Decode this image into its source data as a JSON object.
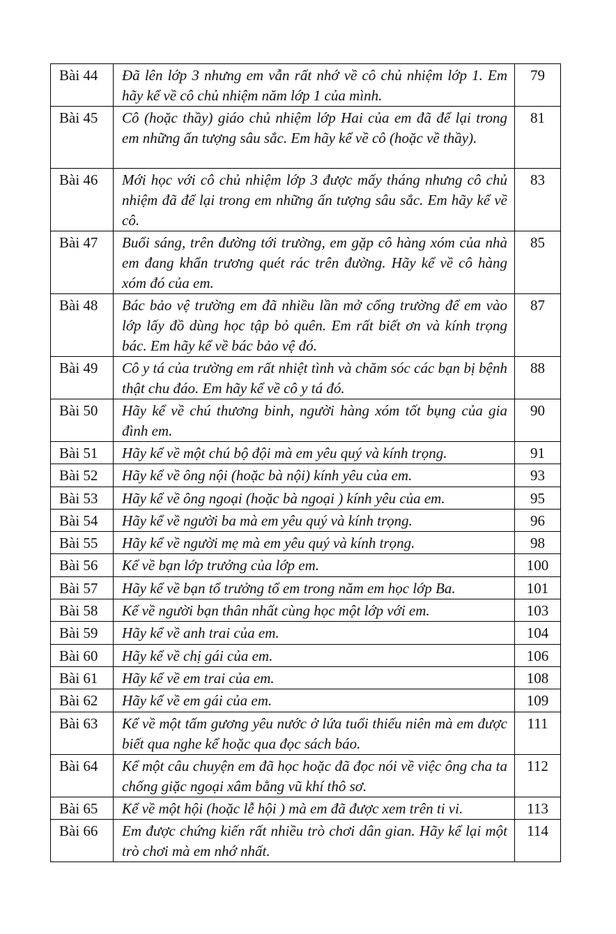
{
  "rows": [
    {
      "num": "Bài 44",
      "topic": "Đã lên lớp 3 nhưng em vẫn rất nhớ về cô chủ nhiệm lớp 1. Em hãy kể về cô chủ nhiệm năm lớp 1 của mình.",
      "page": "79"
    },
    {
      "num": "Bài 45",
      "topic": "Cô (hoặc thầy) giáo chủ nhiệm lớp Hai của em đã để lại trong em những ấn tượng sâu sắc. Em hãy kể về cô (hoặc về thầy).",
      "page": "81"
    },
    {
      "num": "Bài 46",
      "topic": "Mới học với cô chủ nhiệm lớp 3 được mấy tháng nhưng cô chủ nhiệm đã để lại trong em những ấn tượng sâu sắc. Em hãy kể về cô.",
      "page": "83"
    },
    {
      "num": "Bài 47",
      "topic": "Buổi sáng, trên đường tới trường, em gặp cô hàng xóm của nhà em đang khẩn trương quét rác trên đường. Hãy kể về cô hàng xóm đó của em.",
      "page": "85"
    },
    {
      "num": "Bài 48",
      "topic": "Bác bảo vệ trường em đã nhiều lần mở cổng trường để em vào lớp lấy đồ dùng học tập bỏ quên. Em rất biết ơn và kính trọng bác. Em hãy kể về bác bảo vệ đó.",
      "page": "87"
    },
    {
      "num": "Bài 49",
      "topic": "Cô y tá của trường em rất nhiệt tình và chăm sóc các bạn bị bệnh thật chu đáo. Em hãy kể về cô y tá đó.",
      "page": "88"
    },
    {
      "num": "Bài 50",
      "topic": "Hãy kể về chú thương binh, người hàng xóm tốt bụng của gia đình em.",
      "page": "90"
    },
    {
      "num": "Bài 51",
      "topic": "Hãy kể về một chú bộ đội mà em yêu quý và kính trọng.",
      "page": "91"
    },
    {
      "num": "Bài 52",
      "topic": "Hãy kể về ông nội (hoặc bà nội) kính yêu của em.",
      "page": "93"
    },
    {
      "num": "Bài 53",
      "topic": "Hãy kể về ông ngoại (hoặc bà ngoại ) kính yêu của em.",
      "page": "95"
    },
    {
      "num": "Bài 54",
      "topic": "Hãy kể về người ba mà em yêu quý và kính trọng.",
      "page": "96"
    },
    {
      "num": "Bài 55",
      "topic": "Hãy kể về người mẹ mà em yêu quý và kính trọng.",
      "page": "98"
    },
    {
      "num": "Bài 56",
      "topic": "Kể về bạn lớp trưởng của lớp em.",
      "page": "100"
    },
    {
      "num": "Bài 57",
      "topic": "Hãy  kể về bạn tổ trưởng tổ em trong năm em học lớp Ba.",
      "page": "101"
    },
    {
      "num": "Bài 58",
      "topic": "Kể về người bạn thân nhất cùng học một lớp với em.",
      "page": "103"
    },
    {
      "num": "Bài 59",
      "topic": "Hãy kể về anh trai của em.",
      "page": "104"
    },
    {
      "num": "Bài 60",
      "topic": "Hãy kể về chị gái của em.",
      "page": "106"
    },
    {
      "num": "Bài 61",
      "topic": "Hãy kể về em trai của em.",
      "page": "108"
    },
    {
      "num": "Bài 62",
      "topic": "Hãy kể về em gái của em.",
      "page": "109"
    },
    {
      "num": "Bài 63",
      "topic": "Kể về một tấm gương yêu nước ở lứa tuổi thiếu niên mà em được biết qua nghe kể hoặc qua đọc sách báo.",
      "page": "111"
    },
    {
      "num": "Bài 64",
      "topic": "Kể một câu chuyện em đã học hoặc đã đọc nói về việc ông cha ta chống giặc ngoại xâm bằng vũ khí thô sơ.",
      "page": "112"
    },
    {
      "num": "Bài 65",
      "topic": "Kể về một hội (hoặc lễ hội ) mà em đã được xem trên ti vi.",
      "page": "113"
    },
    {
      "num": "Bài 66",
      "topic": "Em được chứng kiến rất nhiều trò chơi dân gian. Hãy kể lại một trò chơi mà em nhớ nhất.",
      "page": "114"
    }
  ]
}
